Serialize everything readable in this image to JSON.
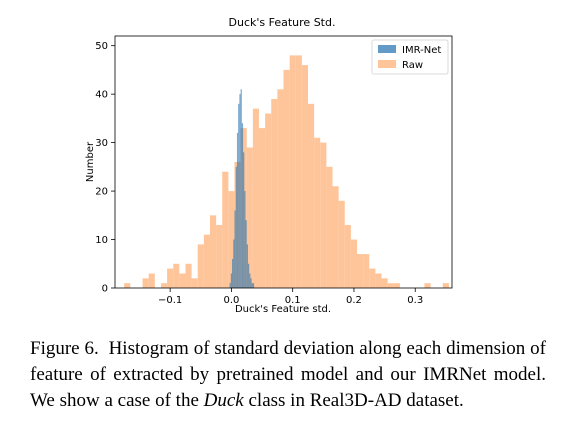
{
  "chart_data": {
    "type": "bar",
    "title": "Duck's Feature Std.",
    "xlabel": "Duck's Feature std.",
    "ylabel": "Number",
    "xlim": [
      -0.19,
      0.36
    ],
    "ylim": [
      0,
      52
    ],
    "xticks": [
      -0.1,
      0.0,
      0.1,
      0.2,
      0.3
    ],
    "xtick_labels": [
      "−0.1",
      "0.0",
      "0.1",
      "0.2",
      "0.3"
    ],
    "yticks": [
      0,
      10,
      20,
      30,
      40,
      50
    ],
    "ytick_labels": [
      "0",
      "10",
      "20",
      "30",
      "40",
      "50"
    ],
    "legend_position": "top-right",
    "grid": false,
    "series": [
      {
        "name": "Raw",
        "color": "#ffbb88",
        "bin_start": -0.175,
        "bin_width": 0.01,
        "values": [
          1,
          0,
          0,
          2,
          3,
          0,
          1,
          4,
          5,
          3,
          5,
          2,
          9,
          11,
          15,
          13,
          24,
          20,
          26,
          33,
          29,
          37,
          33,
          36,
          39,
          41,
          45,
          48,
          48,
          46,
          38,
          31,
          30,
          25,
          21,
          18,
          13,
          10,
          7,
          7,
          4,
          3,
          2,
          1,
          1,
          0,
          0,
          0,
          0,
          1,
          0,
          0,
          1
        ]
      },
      {
        "name": "IMR-Net",
        "color": "#1f6fb0",
        "bin_start": -0.003,
        "bin_width": 0.002,
        "values": [
          1,
          3,
          6,
          10,
          16,
          25,
          32,
          38,
          40,
          41,
          34,
          28,
          20,
          14,
          9,
          5,
          3,
          2,
          1,
          1
        ]
      }
    ]
  },
  "caption": {
    "label": "Figure 6.",
    "text_before": "Histogram of standard deviation along each dimension of feature of extracted by pretrained model and our IMRNet model. We show a case of the ",
    "emphasis": "Duck",
    "text_after": " class in Real3D-AD dataset."
  }
}
